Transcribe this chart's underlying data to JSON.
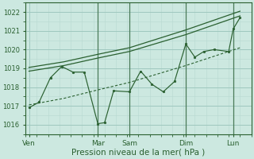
{
  "title": "",
  "xlabel": "Pression niveau de la mer( hPa )",
  "ylabel": "",
  "ylim": [
    1015.5,
    1022.5
  ],
  "xlim": [
    0,
    10.0
  ],
  "background_color": "#cce8e0",
  "grid_color_major": "#9ec8be",
  "grid_color_minor": "#b8d8d0",
  "line_color": "#2a6030",
  "vline_color": "#4a7a58",
  "x_ticks_labels": [
    "Ven",
    "Mar",
    "Sam",
    "Dim",
    "Lun"
  ],
  "x_ticks_pos": [
    0.15,
    3.2,
    4.6,
    7.1,
    9.2
  ],
  "yticks": [
    1016,
    1017,
    1018,
    1019,
    1020,
    1021,
    1022
  ],
  "ytick_fontsize": 6,
  "xtick_fontsize": 6.5,
  "xlabel_fontsize": 7.5,
  "main_x": [
    0.15,
    0.6,
    1.1,
    1.6,
    2.1,
    2.6,
    3.2,
    3.5,
    3.9,
    4.6,
    5.1,
    5.6,
    6.1,
    6.6,
    7.1,
    7.5,
    7.9,
    8.35,
    9.0,
    9.2,
    9.5
  ],
  "main_y": [
    1016.9,
    1017.2,
    1018.5,
    1019.1,
    1018.8,
    1018.8,
    1016.05,
    1016.1,
    1017.8,
    1017.75,
    1018.85,
    1018.15,
    1017.75,
    1018.3,
    1020.3,
    1019.6,
    1019.9,
    1020.0,
    1019.9,
    1021.1,
    1021.7
  ],
  "upper_x": [
    0.15,
    1.7,
    3.2,
    4.6,
    7.1,
    9.5
  ],
  "upper_y": [
    1018.85,
    1019.15,
    1019.55,
    1019.9,
    1020.8,
    1021.8
  ],
  "upper2_x": [
    0.15,
    1.7,
    3.2,
    4.6,
    7.1,
    9.5
  ],
  "upper2_y": [
    1019.05,
    1019.35,
    1019.75,
    1020.1,
    1021.05,
    1022.05
  ],
  "lower_x": [
    0.15,
    1.7,
    3.2,
    4.6,
    7.1,
    9.5
  ],
  "lower_y": [
    1017.05,
    1017.4,
    1017.85,
    1018.25,
    1019.15,
    1020.1
  ],
  "vline_x": [
    3.2,
    4.6,
    7.1,
    9.2
  ]
}
